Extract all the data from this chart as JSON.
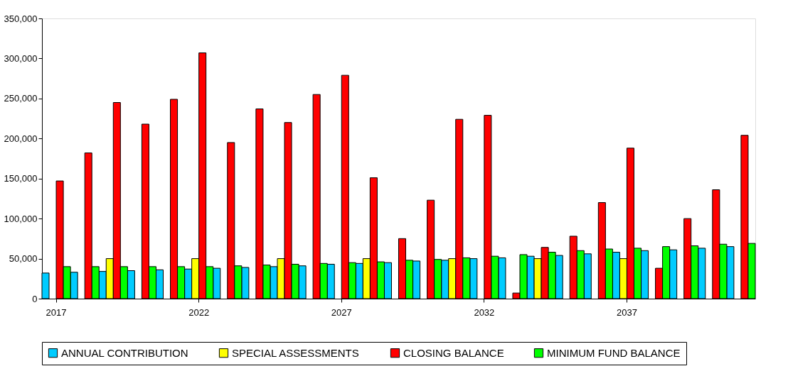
{
  "chart_data": {
    "type": "bar",
    "categories": [
      "2017",
      null,
      null,
      null,
      null,
      "2022",
      null,
      null,
      null,
      null,
      "2027",
      null,
      null,
      null,
      null,
      "2032",
      null,
      null,
      null,
      null,
      "2037",
      null,
      null,
      null,
      null
    ],
    "series": [
      {
        "name": "ANNUAL CONTRIBUTION",
        "color": "#00ccff",
        "values": [
          32000,
          33000,
          34000,
          35000,
          36000,
          37000,
          38000,
          39000,
          40000,
          41000,
          43000,
          44000,
          45000,
          47000,
          48000,
          50000,
          51000,
          53000,
          54000,
          56000,
          58000,
          60000,
          61000,
          63000,
          65000
        ]
      },
      {
        "name": "SPECIAL ASSESSMENTS",
        "color": "#ffff00",
        "values": [
          null,
          null,
          50000,
          null,
          null,
          50000,
          null,
          null,
          50000,
          null,
          null,
          50000,
          null,
          null,
          50000,
          null,
          null,
          50000,
          null,
          null,
          50000,
          null,
          null,
          null,
          null
        ]
      },
      {
        "name": "CLOSING BALANCE",
        "color": "#ff0000",
        "values": [
          147000,
          182000,
          245000,
          218000,
          249000,
          307000,
          195000,
          237000,
          220000,
          255000,
          279000,
          151000,
          75000,
          123000,
          224000,
          229000,
          7000,
          64000,
          78000,
          120000,
          188000,
          38000,
          100000,
          136000,
          204000
        ]
      },
      {
        "name": "MINIMUM FUND BALANCE",
        "color": "#00ff00",
        "values": [
          40000,
          40000,
          40000,
          40000,
          40000,
          40000,
          41000,
          42000,
          43000,
          44000,
          45000,
          46000,
          48000,
          49000,
          51000,
          53000,
          55000,
          58000,
          60000,
          62000,
          63000,
          65000,
          66000,
          68000,
          69000
        ]
      }
    ],
    "ylim": [
      0,
      350000
    ],
    "yticks": [
      0,
      {
        "value": 50000,
        "label": "50,000"
      },
      {
        "value": 100000,
        "label": "100,000"
      },
      {
        "value": 150000,
        "label": "150,000"
      },
      {
        "value": 200000,
        "label": "200,000"
      },
      {
        "value": 250000,
        "label": "250,000"
      },
      {
        "value": 300000,
        "label": "300,000"
      },
      {
        "value": 350000,
        "label": "350,000"
      }
    ],
    "grid": false,
    "legend": "bottom"
  }
}
